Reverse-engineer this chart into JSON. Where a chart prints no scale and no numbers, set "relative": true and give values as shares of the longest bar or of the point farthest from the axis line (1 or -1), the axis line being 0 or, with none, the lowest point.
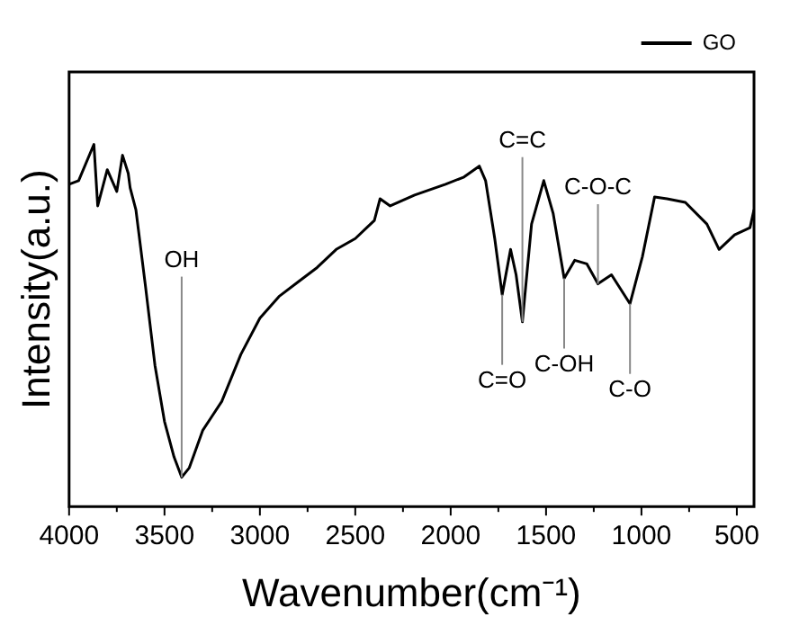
{
  "chart_data": {
    "type": "line",
    "relative": true,
    "xlabel": "Wavenumber(cm⁻¹)",
    "ylabel": "Intensity(a.u.)",
    "xlim": [
      4000,
      410
    ],
    "xticks": [
      4000,
      {
        "value": 3750,
        "label": null
      },
      3500,
      {
        "value": 3250,
        "label": null
      },
      3000,
      {
        "value": 2750,
        "label": null
      },
      2500,
      {
        "value": 2250,
        "label": null
      },
      2000,
      {
        "value": 1750,
        "label": null
      },
      1500,
      {
        "value": 1250,
        "label": null
      },
      1000,
      {
        "value": 750,
        "label": null
      },
      500
    ],
    "legend": "top right",
    "grid": false,
    "marker": "none",
    "line_style": "solid",
    "series": [
      {
        "name": "GO",
        "color": "#000000",
        "x": [
          4000,
          3950,
          3870,
          3850,
          3800,
          3750,
          3720,
          3690,
          3680,
          3650,
          3600,
          3550,
          3500,
          3450,
          3410,
          3370,
          3300,
          3250,
          3200,
          3100,
          3000,
          2900,
          2800,
          2700,
          2600,
          2500,
          2400,
          2370,
          2317,
          2189,
          2027,
          1930,
          1850,
          1817,
          1769,
          1730,
          1686,
          1657,
          1624,
          1576,
          1512,
          1463,
          1405,
          1350,
          1286,
          1228,
          1157,
          1060,
          995,
          931,
          866,
          770,
          657,
          593,
          512,
          431,
          410
        ],
        "values": [
          0.89,
          0.9,
          1.0,
          0.83,
          0.93,
          0.87,
          0.97,
          0.92,
          0.88,
          0.82,
          0.61,
          0.39,
          0.235,
          0.137,
          0.081,
          0.107,
          0.21,
          0.25,
          0.29,
          0.42,
          0.52,
          0.58,
          0.62,
          0.66,
          0.71,
          0.74,
          0.79,
          0.85,
          0.83,
          0.86,
          0.89,
          0.91,
          0.94,
          0.9,
          0.74,
          0.585,
          0.71,
          0.64,
          0.51,
          0.78,
          0.9,
          0.81,
          0.63,
          0.68,
          0.67,
          0.615,
          0.64,
          0.56,
          0.69,
          0.855,
          0.85,
          0.84,
          0.78,
          0.71,
          0.75,
          0.77,
          0.82
        ]
      }
    ],
    "annotations": [
      {
        "text": "OH",
        "x": 3410,
        "y": 0.081
      },
      {
        "text": "C=O",
        "x": 1730,
        "y": 0.585
      },
      {
        "text": "C=C",
        "x": 1624,
        "y": 0.51
      },
      {
        "text": "C-OH",
        "x": 1405,
        "y": 0.63
      },
      {
        "text": "C-O-C",
        "x": 1228,
        "y": 0.615
      },
      {
        "text": "C-O",
        "x": 1060,
        "y": 0.56
      }
    ]
  }
}
